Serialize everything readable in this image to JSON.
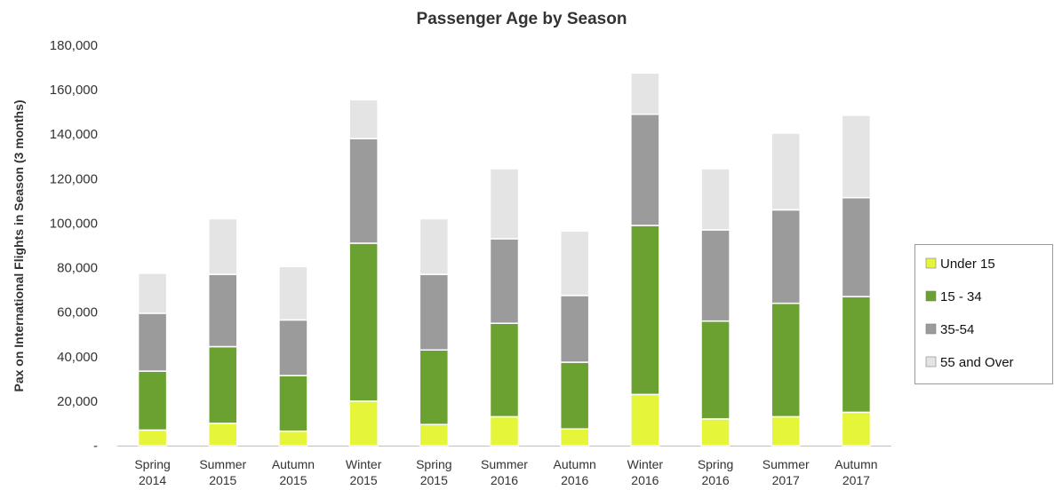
{
  "chart_data": {
    "type": "bar",
    "stacked": true,
    "title": "Passenger Age by Season",
    "ylabel": "Pax on International Flights in Season (3 months)",
    "xlabel": "",
    "ylim": [
      0,
      180000
    ],
    "yticks": [
      0,
      20000,
      40000,
      60000,
      80000,
      100000,
      120000,
      140000,
      160000,
      180000
    ],
    "ytick_labels": [
      "-",
      "20,000",
      "40,000",
      "60,000",
      "80,000",
      "100,000",
      "120,000",
      "140,000",
      "160,000",
      "180,000"
    ],
    "categories": [
      [
        "Spring",
        "2014"
      ],
      [
        "Summer",
        "2015"
      ],
      [
        "Autumn",
        "2015"
      ],
      [
        "Winter",
        "2015"
      ],
      [
        "Spring",
        "2015"
      ],
      [
        "Summer",
        "2016"
      ],
      [
        "Autumn",
        "2016"
      ],
      [
        "Winter",
        "2016"
      ],
      [
        "Spring",
        "2016"
      ],
      [
        "Summer",
        "2017"
      ],
      [
        "Autumn",
        "2017"
      ]
    ],
    "series": [
      {
        "name": "Under 15",
        "color": "#e4f53a",
        "values": [
          7000,
          10000,
          6500,
          20000,
          9500,
          13000,
          7500,
          23000,
          12000,
          13000,
          15000
        ]
      },
      {
        "name": "15 - 34",
        "color": "#6aa130",
        "values": [
          26500,
          34500,
          25000,
          71000,
          33500,
          42000,
          30000,
          76000,
          44000,
          51000,
          52000
        ]
      },
      {
        "name": "35-54",
        "color": "#9b9b9b",
        "values": [
          26000,
          32500,
          25000,
          47000,
          34000,
          38000,
          30000,
          50000,
          41000,
          42000,
          44500
        ]
      },
      {
        "name": "55 and Over",
        "color": "#e4e4e4",
        "values": [
          18000,
          25000,
          24000,
          17500,
          25000,
          31500,
          29000,
          18500,
          27500,
          34500,
          37000
        ]
      }
    ],
    "grid": false,
    "legend_position": "right"
  }
}
